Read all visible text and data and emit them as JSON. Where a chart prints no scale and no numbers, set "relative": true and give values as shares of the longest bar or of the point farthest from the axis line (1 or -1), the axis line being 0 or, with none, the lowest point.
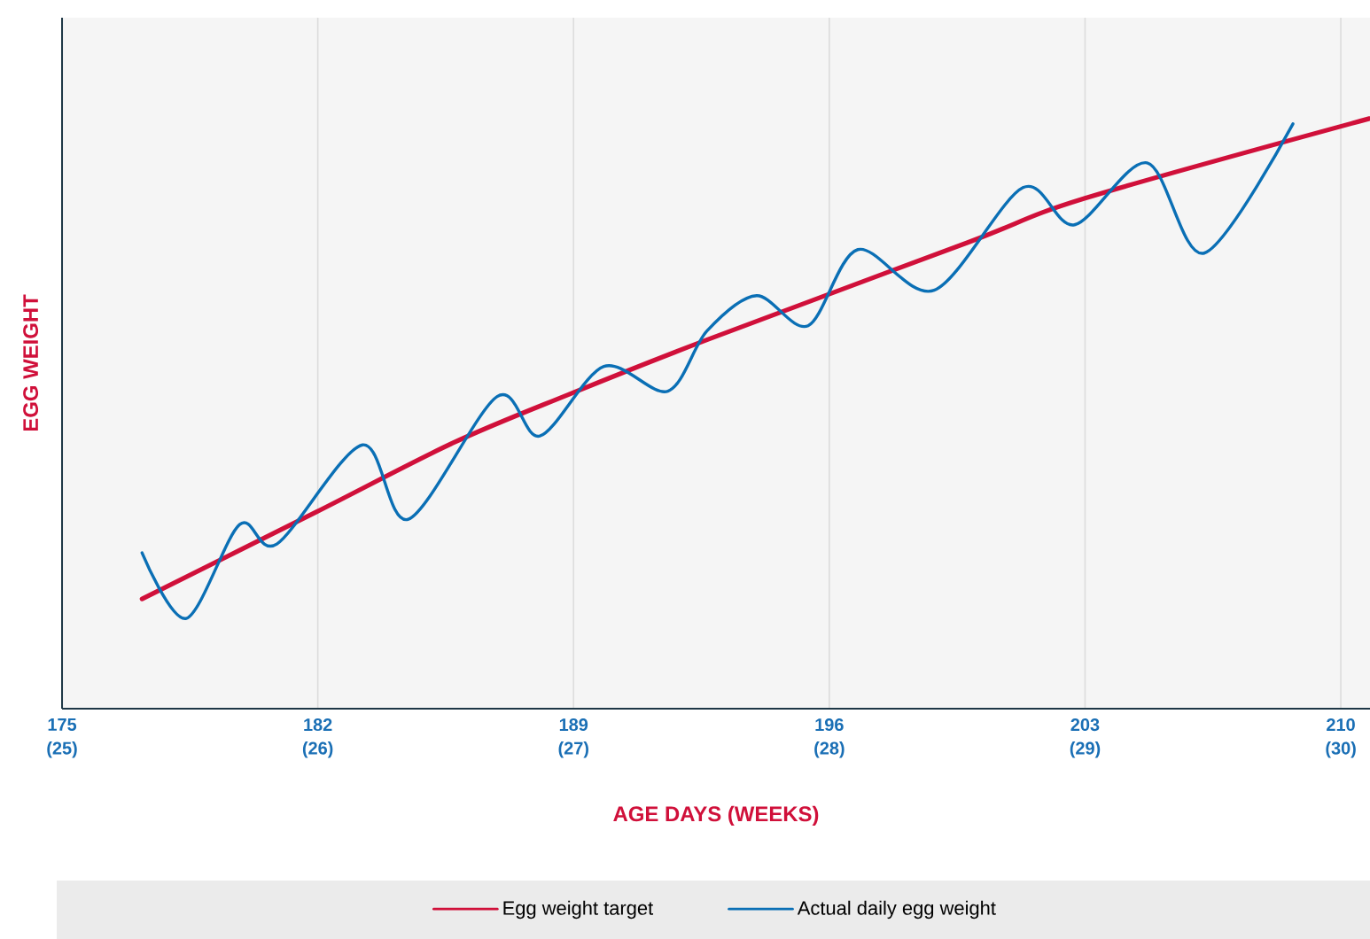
{
  "chart_data": {
    "type": "line",
    "xlabel": "AGE DAYS (WEEKS)",
    "ylabel": "EGG WEIGHT",
    "relative": true,
    "xlim": [
      175,
      210.8
    ],
    "xticks": [
      175,
      182,
      189,
      196,
      203,
      210
    ],
    "x2lim": [
      25,
      30.114
    ],
    "x2ticks": [
      {
        "value": 25,
        "label": "(25)"
      },
      {
        "value": 26,
        "label": "(26)"
      },
      {
        "value": 27,
        "label": "(27)"
      },
      {
        "value": 28,
        "label": "(28)"
      },
      {
        "value": 29,
        "label": "(29)"
      },
      {
        "value": 30,
        "label": "(30)"
      }
    ],
    "grid": "x",
    "legend": "bottom",
    "marker": "none",
    "series": [
      {
        "name": "Egg weight target",
        "color": "#d0103a",
        "x": [
          177.19,
          181.95,
          185.69,
          188.85,
          192.65,
          199.79,
          203.0,
          210.78
        ],
        "values": [
          0.186,
          0.333,
          0.45,
          0.532,
          0.625,
          0.79,
          0.865,
          1.0
        ]
      },
      {
        "name": "Actual daily egg weight",
        "color": "#0a6fb5",
        "x": [
          177.19,
          178.4,
          179.86,
          180.88,
          183.22,
          184.48,
          186.91,
          188.08,
          189.83,
          191.58,
          192.65,
          194.01,
          195.42,
          196.78,
          198.87,
          201.3,
          202.71,
          204.7,
          206.26,
          208.69
        ],
        "values": [
          0.264,
          0.153,
          0.312,
          0.279,
          0.447,
          0.321,
          0.529,
          0.462,
          0.58,
          0.538,
          0.64,
          0.7,
          0.649,
          0.778,
          0.709,
          0.883,
          0.82,
          0.925,
          0.772,
          0.991
        ]
      }
    ]
  }
}
